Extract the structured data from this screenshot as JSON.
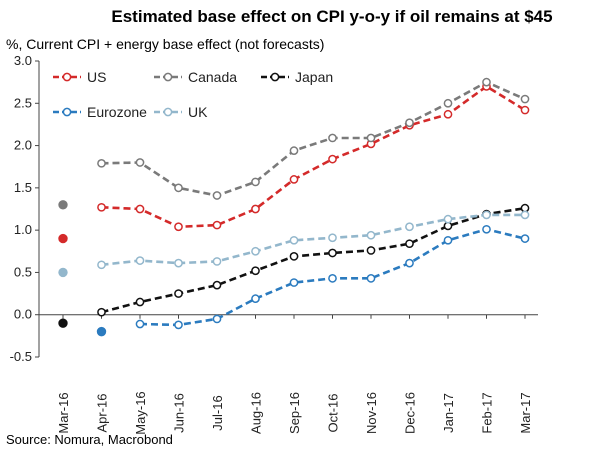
{
  "chart_data": {
    "type": "line",
    "title": "Estimated base effect on CPI y-o-y if oil remains at $45",
    "subtitle": "%, Current CPI + energy base effect (not forecasts)",
    "source": "Source: Nomura, Macrobond",
    "categories": [
      "Mar-16",
      "Apr-16",
      "May-16",
      "Jun-16",
      "Jul-16",
      "Aug-16",
      "Sep-16",
      "Oct-16",
      "Nov-16",
      "Dec-16",
      "Jan-17",
      "Feb-17",
      "Mar-17"
    ],
    "ylim": [
      -0.5,
      3.0
    ],
    "yticks": [
      "-0.5",
      "0.0",
      "0.5",
      "1.0",
      "1.5",
      "2.0",
      "2.5",
      "3.0"
    ],
    "yticks_values": [
      -0.5,
      0.0,
      0.5,
      1.0,
      1.5,
      2.0,
      2.5,
      3.0
    ],
    "grid": false,
    "legend_position": "top-left",
    "series": [
      {
        "name": "US",
        "color": "#d42a2a",
        "values": [
          0.9,
          1.27,
          1.25,
          1.04,
          1.06,
          1.25,
          1.6,
          1.84,
          2.02,
          2.24,
          2.37,
          2.7,
          2.42
        ]
      },
      {
        "name": "Canada",
        "color": "#7a7a7a",
        "values": [
          1.3,
          1.79,
          1.8,
          1.5,
          1.41,
          1.57,
          1.94,
          2.09,
          2.09,
          2.27,
          2.5,
          2.75,
          2.55
        ]
      },
      {
        "name": "Japan",
        "color": "#111111",
        "values": [
          -0.1,
          0.03,
          0.15,
          0.25,
          0.35,
          0.52,
          0.69,
          0.73,
          0.76,
          0.84,
          1.05,
          1.19,
          1.26
        ]
      },
      {
        "name": "Eurozone",
        "color": "#2b7bbf",
        "values": [
          null,
          -0.2,
          -0.11,
          -0.12,
          -0.05,
          0.19,
          0.38,
          0.43,
          0.43,
          0.61,
          0.88,
          1.01,
          0.9
        ]
      },
      {
        "name": "UK",
        "color": "#93b7cc",
        "values": [
          0.5,
          0.59,
          0.64,
          0.61,
          0.63,
          0.75,
          0.88,
          0.91,
          0.94,
          1.04,
          1.13,
          1.18,
          1.18
        ]
      }
    ]
  }
}
